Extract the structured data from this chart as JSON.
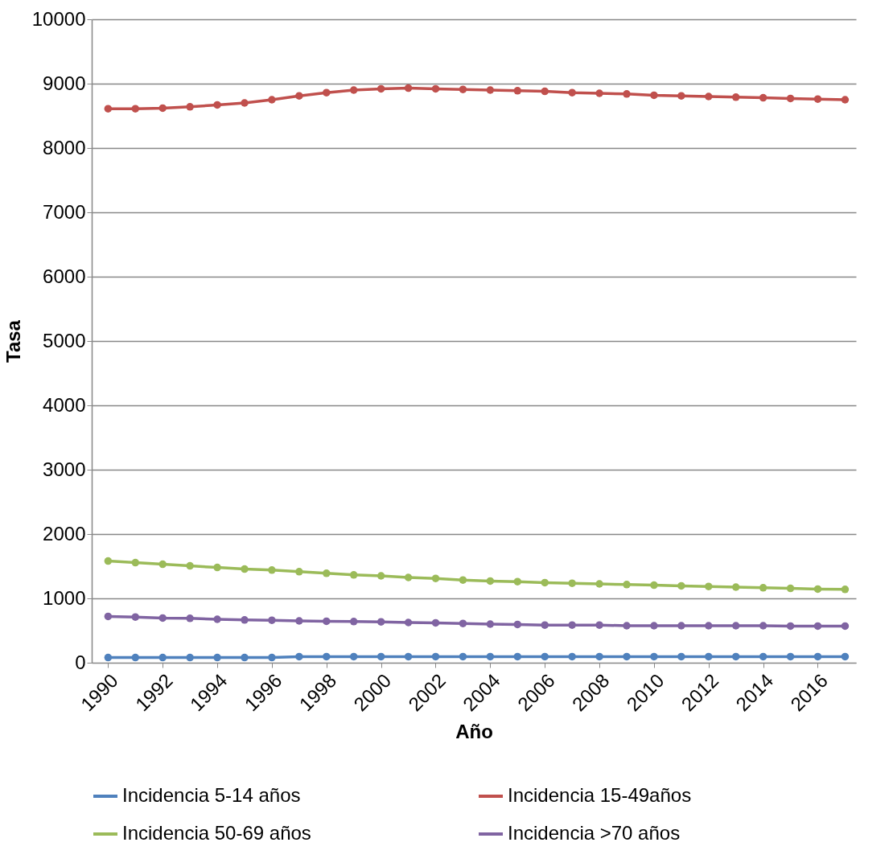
{
  "chart_data": {
    "type": "line",
    "xlabel": "Año",
    "ylabel": "Tasa",
    "x": [
      1990,
      1991,
      1992,
      1993,
      1994,
      1995,
      1996,
      1997,
      1998,
      1999,
      2000,
      2001,
      2002,
      2003,
      2004,
      2005,
      2006,
      2007,
      2008,
      2009,
      2010,
      2011,
      2012,
      2013,
      2014,
      2015,
      2016,
      2017
    ],
    "xlim": [
      1989.4,
      2017.4
    ],
    "xticks": [
      1990,
      1992,
      1994,
      1996,
      1998,
      2000,
      2002,
      2004,
      2006,
      2008,
      2010,
      2012,
      2014,
      2016
    ],
    "ylim": [
      0,
      10000
    ],
    "yticks": [
      0,
      1000,
      2000,
      3000,
      4000,
      5000,
      6000,
      7000,
      8000,
      9000,
      10000
    ],
    "grid": "y",
    "legend": "bottom",
    "marker": "circle",
    "line_style": "solid",
    "series": [
      {
        "name": "Incidencia 5-14 años",
        "color": "#4f81bd",
        "values": [
          80,
          80,
          80,
          80,
          80,
          80,
          80,
          95,
          95,
          95,
          95,
          95,
          95,
          95,
          95,
          95,
          95,
          95,
          95,
          95,
          95,
          95,
          95,
          95,
          95,
          95,
          95,
          95
        ]
      },
      {
        "name": "Incidencia 15-49años",
        "color": "#c0504d",
        "values": [
          8610,
          8610,
          8620,
          8640,
          8670,
          8700,
          8750,
          8810,
          8860,
          8900,
          8920,
          8930,
          8920,
          8910,
          8900,
          8890,
          8880,
          8860,
          8850,
          8840,
          8820,
          8810,
          8800,
          8790,
          8780,
          8770,
          8760,
          8750
        ]
      },
      {
        "name": "Incidencia 50-69 años",
        "color": "#9bbb59",
        "values": [
          1580,
          1555,
          1530,
          1505,
          1480,
          1455,
          1440,
          1415,
          1390,
          1365,
          1350,
          1325,
          1310,
          1285,
          1270,
          1260,
          1245,
          1235,
          1225,
          1215,
          1205,
          1195,
          1185,
          1175,
          1165,
          1155,
          1145,
          1140
        ]
      },
      {
        "name": "Incidencia >70 años",
        "color": "#8064a2",
        "values": [
          720,
          710,
          695,
          690,
          675,
          665,
          660,
          650,
          645,
          640,
          635,
          625,
          620,
          610,
          600,
          595,
          585,
          585,
          585,
          575,
          575,
          575,
          575,
          575,
          575,
          570,
          570,
          570
        ]
      }
    ]
  }
}
